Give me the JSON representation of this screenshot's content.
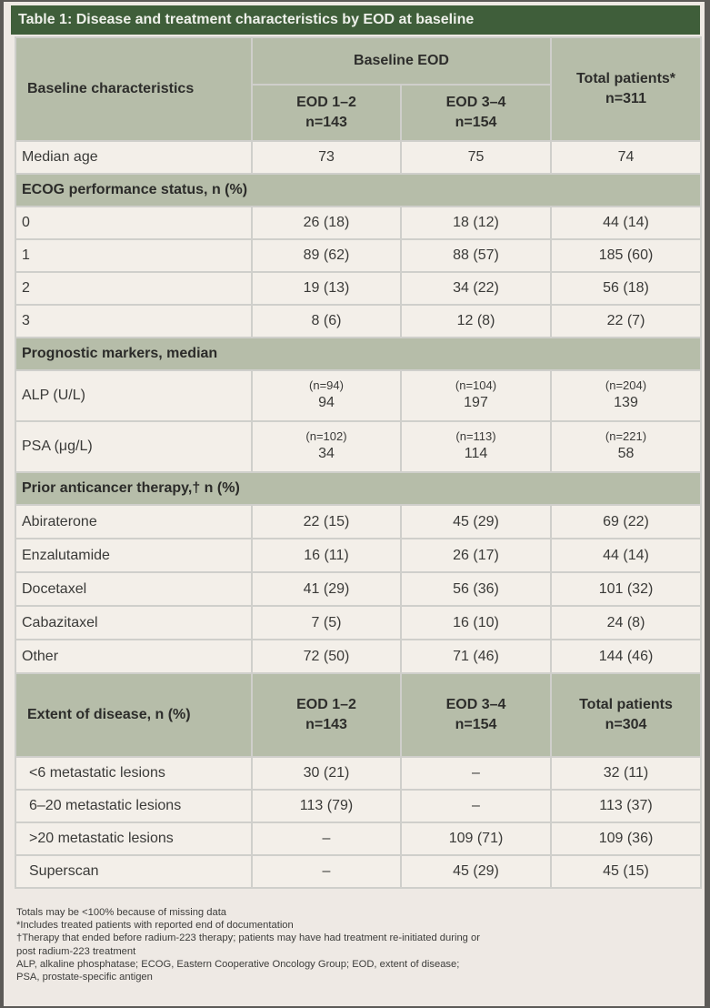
{
  "title": "Table 1: Disease and treatment characteristics by EOD at baseline",
  "header": {
    "baseline_characteristics": "Baseline characteristics",
    "baseline_eod": "Baseline EOD",
    "eod12": "EOD 1–2",
    "eod12_n": "n=143",
    "eod34": "EOD 3–4",
    "eod34_n": "n=154",
    "total": "Total patients*",
    "total_n": "n=311"
  },
  "median_age": {
    "label": "Median age",
    "values": [
      "73",
      "75",
      "74"
    ]
  },
  "ecog": {
    "heading": "ECOG performance status, n (%)",
    "rows": [
      {
        "label": "0",
        "values": [
          "26 (18)",
          "18 (12)",
          "44 (14)"
        ]
      },
      {
        "label": "1",
        "values": [
          "89 (62)",
          "88 (57)",
          "185 (60)"
        ]
      },
      {
        "label": "2",
        "values": [
          "19 (13)",
          "34 (22)",
          "56 (18)"
        ]
      },
      {
        "label": "3",
        "values": [
          "8 (6)",
          "12 (8)",
          "22 (7)"
        ]
      }
    ]
  },
  "prognostic": {
    "heading": "Prognostic markers, median",
    "rows": [
      {
        "label": "ALP (U/L)",
        "n": [
          "(n=94)",
          "(n=104)",
          "(n=204)"
        ],
        "values": [
          "94",
          "197",
          "139"
        ]
      },
      {
        "label": "PSA (μg/L)",
        "n": [
          "(n=102)",
          "(n=113)",
          "(n=221)"
        ],
        "values": [
          "34",
          "114",
          "58"
        ]
      }
    ]
  },
  "prior": {
    "heading": "Prior anticancer therapy,† n (%)",
    "rows": [
      {
        "label": "Abiraterone",
        "values": [
          "22 (15)",
          "45 (29)",
          "69 (22)"
        ]
      },
      {
        "label": "Enzalutamide",
        "values": [
          "16 (11)",
          "26 (17)",
          "44 (14)"
        ]
      },
      {
        "label": "Docetaxel",
        "values": [
          "41 (29)",
          "56 (36)",
          "101 (32)"
        ]
      },
      {
        "label": "Cabazitaxel",
        "values": [
          "7 (5)",
          "16 (10)",
          "24 (8)"
        ]
      },
      {
        "label": "Other",
        "values": [
          "72 (50)",
          "71 (46)",
          "144 (46)"
        ]
      }
    ]
  },
  "extent": {
    "heading": "Extent of disease, n (%)",
    "eod12": "EOD 1–2",
    "eod12_n": "n=143",
    "eod34": "EOD 3–4",
    "eod34_n": "n=154",
    "total": "Total patients",
    "total_n": "n=304",
    "rows": [
      {
        "label": "<6 metastatic lesions",
        "values": [
          "30 (21)",
          "–",
          "32 (11)"
        ]
      },
      {
        "label": "6–20 metastatic lesions",
        "values": [
          "113 (79)",
          "–",
          "113 (37)"
        ]
      },
      {
        "label": ">20 metastatic lesions",
        "values": [
          "–",
          "109 (71)",
          "109 (36)"
        ]
      },
      {
        "label": "Superscan",
        "values": [
          "–",
          "45 (29)",
          "45 (15)"
        ]
      }
    ]
  },
  "footnotes": [
    "Totals may be <100% because of missing data",
    "*Includes treated patients with reported end of documentation",
    "†Therapy that ended before radium-223 therapy; patients may have had treatment re-initiated during or",
    "post radium-223 treatment",
    "ALP, alkaline phosphatase; ECOG, Eastern Cooperative Oncology Group; EOD, extent of disease;",
    "PSA, prostate-specific antigen"
  ]
}
